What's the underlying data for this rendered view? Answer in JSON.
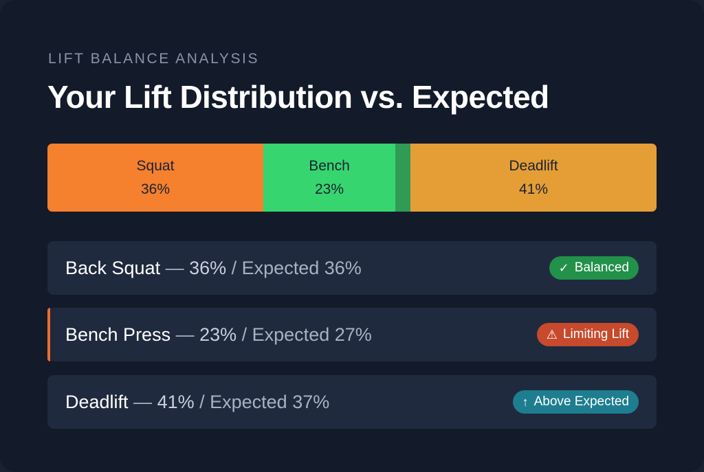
{
  "header": {
    "eyebrow": "LIFT BALANCE ANALYSIS",
    "title": "Your Lift Distribution vs. Expected"
  },
  "distribution": [
    {
      "label": "Squat",
      "percent_text": "36%",
      "value": 36,
      "color": "#f5802e"
    },
    {
      "label": "Bench",
      "percent_text": "23%",
      "value": 23,
      "color": "#37d56f"
    },
    {
      "label": "Deadlift",
      "percent_text": "41%",
      "value": 41,
      "color": "#e59e35"
    }
  ],
  "rows": [
    {
      "name": "Back Squat",
      "separator": " — ",
      "current": "36%",
      "expected": " / Expected 36%",
      "badge": {
        "icon": "check-icon",
        "glyph": "✓",
        "label": "Balanced",
        "color": "#22914a"
      }
    },
    {
      "name": "Bench Press",
      "separator": " — ",
      "current": "23%",
      "expected": " / Expected 27%",
      "badge": {
        "icon": "warning-icon",
        "glyph": "⚠",
        "label": "Limiting Lift",
        "color": "#c74a2c"
      }
    },
    {
      "name": "Deadlift",
      "separator": " — ",
      "current": "41%",
      "expected": " / Expected 37%",
      "badge": {
        "icon": "arrow-up-icon",
        "glyph": "↑",
        "label": "Above Expected",
        "color": "#1e7d8f"
      }
    }
  ]
}
